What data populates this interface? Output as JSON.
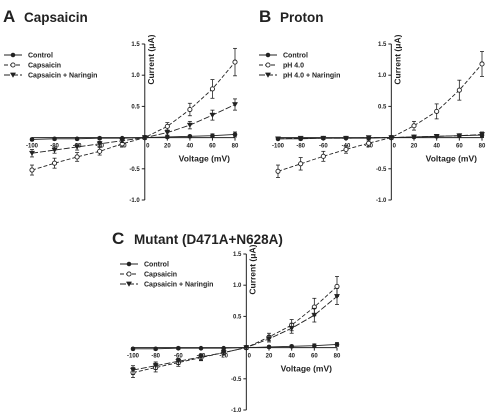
{
  "chart_data": [
    {
      "type": "line",
      "letter": "A",
      "title": "Capsaicin",
      "xlabel": "Voltage (mV)",
      "ylabel": "Current (μA)",
      "xlim": [
        -100,
        80
      ],
      "ylim": [
        -1.0,
        1.5
      ],
      "x_ticks": [
        -100,
        -80,
        -60,
        -40,
        -20,
        0,
        20,
        40,
        60,
        80
      ],
      "y_ticks": [
        -1.0,
        -0.5,
        0.5,
        1.0,
        1.5
      ],
      "x_tick_labels": [
        "-100",
        "-80",
        "-60",
        "-40",
        "-20",
        "0",
        "20",
        "40",
        "60",
        "80"
      ],
      "y_tick_labels": [
        "-1.0",
        "-0.5",
        "0.5",
        "1.0",
        "1.5"
      ],
      "legend_position": "top-left",
      "x": [
        -100,
        -80,
        -60,
        -40,
        -20,
        0,
        20,
        40,
        60,
        80
      ],
      "series": [
        {
          "name": "Control",
          "marker": "filled-circle",
          "color": "#222222",
          "values": [
            -0.03,
            -0.02,
            -0.02,
            -0.01,
            -0.01,
            0.0,
            0.01,
            0.02,
            0.03,
            0.05
          ],
          "errors": [
            0.02,
            0.02,
            0.02,
            0.02,
            0.01,
            0.01,
            0.02,
            0.02,
            0.03,
            0.04
          ]
        },
        {
          "name": "Capsaicin",
          "marker": "open-circle",
          "color": "#222222",
          "values": [
            -0.52,
            -0.41,
            -0.31,
            -0.22,
            -0.1,
            0.0,
            0.18,
            0.45,
            0.78,
            1.21
          ],
          "errors": [
            0.08,
            0.08,
            0.07,
            0.06,
            0.05,
            0.03,
            0.06,
            0.1,
            0.15,
            0.22
          ]
        },
        {
          "name": "Capsaicin + Naringin",
          "marker": "filled-triangle-down",
          "color": "#222222",
          "values": [
            -0.25,
            -0.2,
            -0.15,
            -0.1,
            -0.05,
            0.0,
            0.08,
            0.2,
            0.36,
            0.53
          ],
          "errors": [
            0.06,
            0.05,
            0.05,
            0.04,
            0.03,
            0.02,
            0.04,
            0.06,
            0.08,
            0.09
          ]
        }
      ]
    },
    {
      "type": "line",
      "letter": "B",
      "title": "Proton",
      "xlabel": "Voltage (mV)",
      "ylabel": "Current (μA)",
      "xlim": [
        -100,
        80
      ],
      "ylim": [
        -1.0,
        1.5
      ],
      "x_ticks": [
        -100,
        -80,
        -60,
        -40,
        -20,
        0,
        20,
        40,
        60,
        80
      ],
      "y_ticks": [
        -1.0,
        -0.5,
        0.5,
        1.0,
        1.5
      ],
      "x_tick_labels": [
        "-100",
        "-80",
        "-60",
        "-40",
        "-20",
        "0",
        "20",
        "40",
        "60",
        "80"
      ],
      "y_tick_labels": [
        "-1.0",
        "-0.5",
        "0.5",
        "1.0",
        "1.5"
      ],
      "legend_position": "top-left",
      "x": [
        -100,
        -80,
        -60,
        -40,
        -20,
        0,
        20,
        40,
        60,
        80
      ],
      "series": [
        {
          "name": "Control",
          "marker": "filled-circle",
          "color": "#222222",
          "values": [
            -0.02,
            -0.02,
            -0.01,
            -0.01,
            -0.01,
            0.0,
            0.01,
            0.02,
            0.03,
            0.04
          ],
          "errors": [
            0.02,
            0.02,
            0.02,
            0.01,
            0.01,
            0.01,
            0.01,
            0.02,
            0.03,
            0.04
          ]
        },
        {
          "name": "pH 4.0",
          "marker": "open-circle",
          "color": "#222222",
          "values": [
            -0.54,
            -0.42,
            -0.3,
            -0.19,
            -0.09,
            0.0,
            0.19,
            0.42,
            0.76,
            1.18
          ],
          "errors": [
            0.1,
            0.1,
            0.08,
            0.06,
            0.05,
            0.03,
            0.07,
            0.12,
            0.16,
            0.2
          ]
        },
        {
          "name": "pH 4.0 + Naringin",
          "marker": "filled-triangle-down",
          "color": "#222222",
          "values": [
            -0.02,
            -0.01,
            -0.01,
            -0.01,
            0.0,
            0.0,
            0.01,
            0.02,
            0.03,
            0.05
          ],
          "errors": [
            0.02,
            0.02,
            0.02,
            0.01,
            0.01,
            0.01,
            0.02,
            0.02,
            0.03,
            0.04
          ]
        }
      ]
    },
    {
      "type": "line",
      "letter": "C",
      "title": "Mutant (D471A+N628A)",
      "xlabel": "Voltage (mV)",
      "ylabel": "Current (μA)",
      "xlim": [
        -100,
        80
      ],
      "ylim": [
        -1.0,
        1.5
      ],
      "x_ticks": [
        -100,
        -80,
        -60,
        -40,
        -20,
        0,
        20,
        40,
        60,
        80
      ],
      "y_ticks": [
        -1.0,
        -0.5,
        0.5,
        1.0,
        1.5
      ],
      "x_tick_labels": [
        "-100",
        "-80",
        "-60",
        "-40",
        "-20",
        "0",
        "20",
        "40",
        "60",
        "80"
      ],
      "y_tick_labels": [
        "-1.0",
        "-0.5",
        "0.5",
        "1.0",
        "1.5"
      ],
      "legend_position": "top-left",
      "x": [
        -100,
        -80,
        -60,
        -40,
        -20,
        0,
        20,
        40,
        60,
        80
      ],
      "series": [
        {
          "name": "Control",
          "marker": "filled-circle",
          "color": "#222222",
          "values": [
            -0.02,
            -0.02,
            -0.01,
            -0.01,
            -0.01,
            0.0,
            0.01,
            0.02,
            0.03,
            0.05
          ],
          "errors": [
            0.02,
            0.02,
            0.02,
            0.01,
            0.01,
            0.01,
            0.02,
            0.02,
            0.03,
            0.03
          ]
        },
        {
          "name": "Capsaicin",
          "marker": "open-circle",
          "color": "#222222",
          "values": [
            -0.4,
            -0.32,
            -0.24,
            -0.16,
            -0.08,
            0.0,
            0.17,
            0.36,
            0.65,
            0.98
          ],
          "errors": [
            0.08,
            0.07,
            0.06,
            0.05,
            0.04,
            0.03,
            0.06,
            0.09,
            0.14,
            0.16
          ]
        },
        {
          "name": "Capsaicin + Naringin",
          "marker": "filled-triangle-down",
          "color": "#222222",
          "values": [
            -0.36,
            -0.29,
            -0.22,
            -0.15,
            -0.08,
            0.0,
            0.14,
            0.31,
            0.52,
            0.82
          ],
          "errors": [
            0.07,
            0.06,
            0.05,
            0.05,
            0.04,
            0.03,
            0.05,
            0.08,
            0.11,
            0.13
          ]
        }
      ]
    }
  ]
}
